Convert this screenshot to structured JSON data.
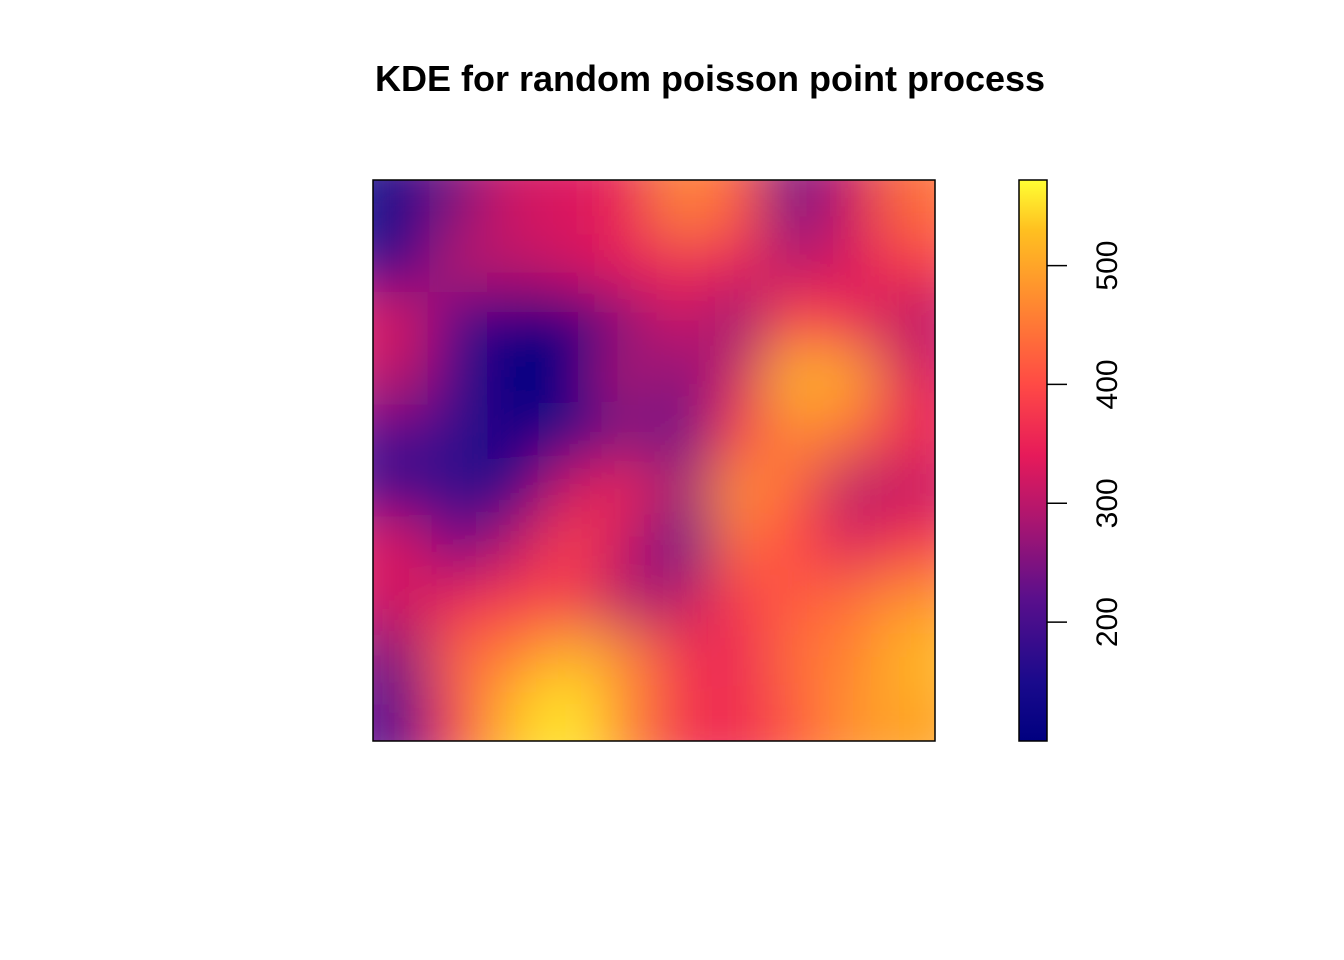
{
  "chart_data": {
    "type": "heatmap",
    "title": "KDE for random poisson point process",
    "xlabel": "",
    "ylabel": "",
    "legend": {
      "position": "right",
      "min": 100,
      "max": 572,
      "ticks": [
        200,
        300,
        400,
        500
      ],
      "tick_labels": [
        "200",
        "300",
        "400",
        "500"
      ]
    },
    "colormap": [
      {
        "value": 100,
        "color": "#000080"
      },
      {
        "value": 150,
        "color": "#1a0a8c"
      },
      {
        "value": 220,
        "color": "#5a0f8c"
      },
      {
        "value": 290,
        "color": "#b0166e"
      },
      {
        "value": 340,
        "color": "#e61a5a"
      },
      {
        "value": 400,
        "color": "#ff4a45"
      },
      {
        "value": 470,
        "color": "#ff8a30"
      },
      {
        "value": 530,
        "color": "#ffc020"
      },
      {
        "value": 572,
        "color": "#ffff33"
      }
    ],
    "grid_rows": 10,
    "grid_cols": 10,
    "z": [
      [
        140,
        250,
        320,
        330,
        350,
        470,
        420,
        220,
        320,
        440
      ],
      [
        160,
        300,
        300,
        320,
        340,
        360,
        340,
        300,
        330,
        380
      ],
      [
        330,
        200,
        110,
        110,
        260,
        320,
        260,
        400,
        350,
        300
      ],
      [
        300,
        180,
        105,
        110,
        290,
        250,
        320,
        520,
        500,
        330
      ],
      [
        220,
        180,
        115,
        140,
        250,
        230,
        380,
        470,
        440,
        360
      ],
      [
        180,
        170,
        140,
        320,
        360,
        270,
        480,
        430,
        290,
        310
      ],
      [
        330,
        230,
        300,
        390,
        310,
        190,
        440,
        400,
        330,
        380
      ],
      [
        320,
        350,
        380,
        380,
        290,
        300,
        380,
        420,
        440,
        480
      ],
      [
        250,
        430,
        460,
        520,
        470,
        370,
        350,
        440,
        460,
        520
      ],
      [
        220,
        390,
        530,
        560,
        470,
        370,
        360,
        420,
        480,
        500
      ]
    ]
  }
}
